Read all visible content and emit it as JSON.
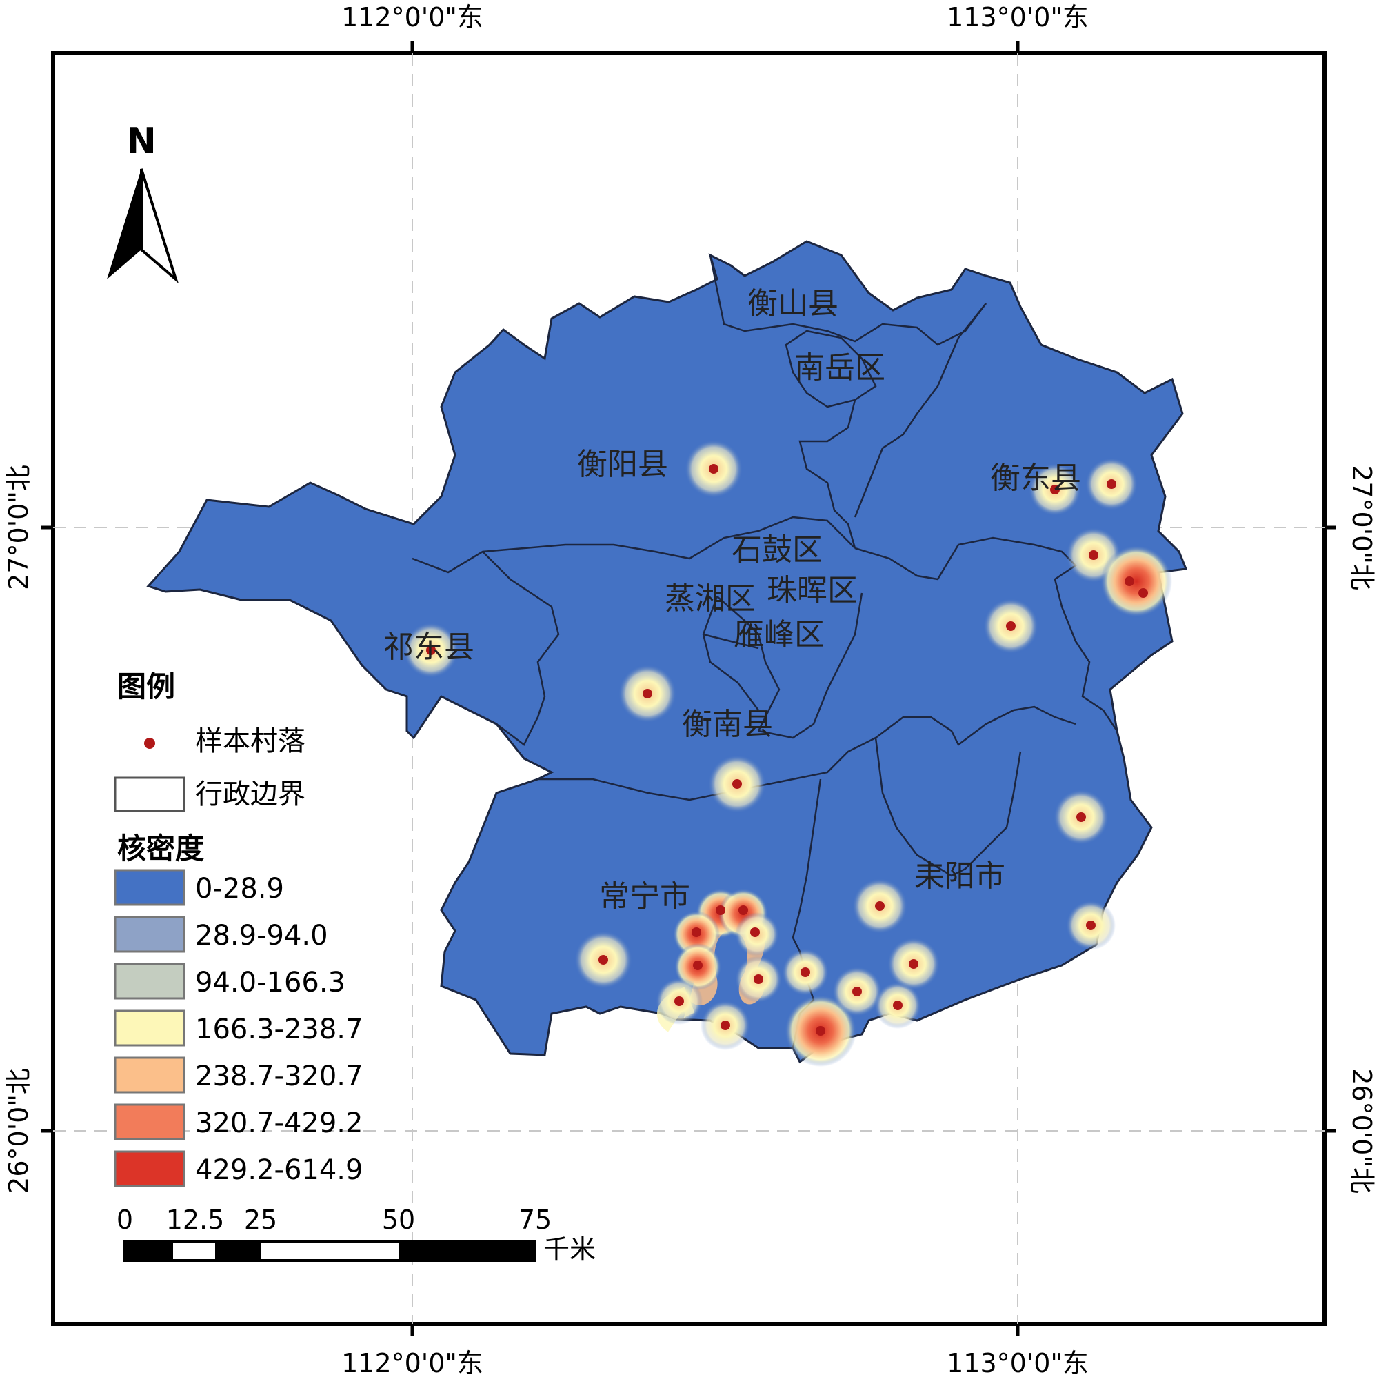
{
  "coordinates": {
    "top": [
      "112°0'0\"东",
      "113°0'0\"东"
    ],
    "bottom": [
      "112°0'0\"东",
      "113°0'0\"东"
    ],
    "left": [
      "27°0'0\"北",
      "26°0'0\"北"
    ],
    "right": [
      "27°0'0\"北",
      "26°0'0\"北"
    ]
  },
  "north_label": "N",
  "districts": [
    {
      "name": "衡山县"
    },
    {
      "name": "南岳区"
    },
    {
      "name": "衡阳县"
    },
    {
      "name": "衡东县"
    },
    {
      "name": "石鼓区"
    },
    {
      "name": "蒸湘区"
    },
    {
      "name": "珠晖区"
    },
    {
      "name": "雁峰区"
    },
    {
      "name": "祁东县"
    },
    {
      "name": "衡南县"
    },
    {
      "name": "常宁市"
    },
    {
      "name": "耒阳市"
    }
  ],
  "legend": {
    "title": "图例",
    "sample_label": "样本村落",
    "boundary_label": "行政边界",
    "density_title": "核密度",
    "classes": [
      {
        "label": "0-28.9",
        "color": "#4472c4"
      },
      {
        "label": "28.9-94.0",
        "color": "#8ea2c6"
      },
      {
        "label": "94.0-166.3",
        "color": "#c4cdc0"
      },
      {
        "label": "166.3-238.7",
        "color": "#fdf7b8"
      },
      {
        "label": "238.7-320.7",
        "color": "#fbbf8a"
      },
      {
        "label": "320.7-429.2",
        "color": "#f27c5a"
      },
      {
        "label": "429.2-614.9",
        "color": "#dc3428"
      }
    ]
  },
  "scale_bar": {
    "ticks": [
      "0",
      "12.5",
      "25",
      "50",
      "75"
    ],
    "unit": "千米"
  },
  "colors": {
    "region_fill": "#4472c4",
    "boundary": "#1c2640",
    "sample_point": "#b01818"
  }
}
